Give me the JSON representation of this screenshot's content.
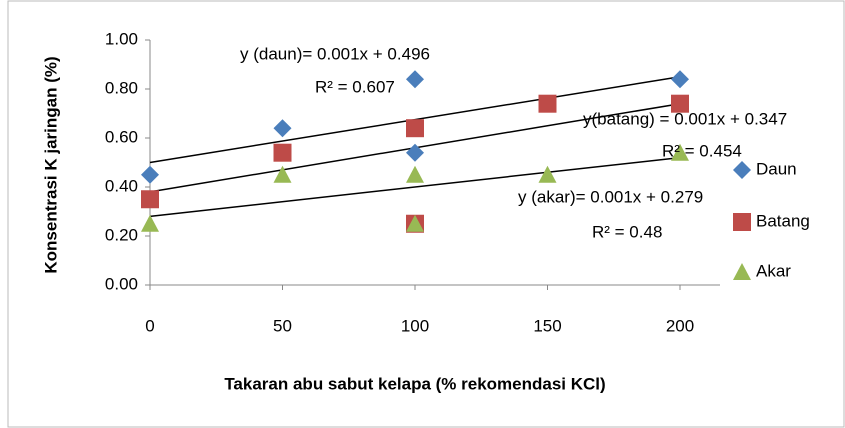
{
  "chart_data": {
    "type": "scatter",
    "x_label": "Takaran abu sabut kelapa (% rekomendasi KCl)",
    "y_label": "Konsentrasi K jaringan (%)",
    "xlim": [
      0,
      200
    ],
    "xticks": [
      0,
      50,
      100,
      150,
      200
    ],
    "ylim": [
      0,
      1
    ],
    "yticks": [
      {
        "value": 0,
        "label": "0.00"
      },
      {
        "value": 0.2,
        "label": "0.20"
      },
      {
        "value": 0.4,
        "label": "0.40"
      },
      {
        "value": 0.6,
        "label": "0.60"
      },
      {
        "value": 0.8,
        "label": "0.80"
      },
      {
        "value": 1,
        "label": "1.00"
      }
    ],
    "grid": false,
    "legend": "right",
    "series": [
      {
        "name": "Daun",
        "color": "#4a7ebb",
        "marker": "diamond",
        "x": [
          0,
          50,
          100,
          100,
          200
        ],
        "values": [
          0.45,
          0.64,
          0.84,
          0.54,
          0.84
        ],
        "trendline": {
          "x": [
            0,
            200
          ],
          "values": [
            0.5,
            0.85
          ]
        }
      },
      {
        "name": "Batang",
        "color": "#be4b48",
        "marker": "square",
        "x": [
          0,
          50,
          100,
          100,
          150,
          200
        ],
        "values": [
          0.35,
          0.54,
          0.64,
          0.25,
          0.74,
          0.74
        ],
        "trendline": {
          "x": [
            0,
            200
          ],
          "values": [
            0.38,
            0.74
          ]
        }
      },
      {
        "name": "Akar",
        "color": "#98b954",
        "marker": "triangle",
        "x": [
          0,
          50,
          100,
          100,
          150,
          200
        ],
        "values": [
          0.25,
          0.45,
          0.45,
          0.25,
          0.45,
          0.54
        ],
        "trendline": {
          "x": [
            0,
            200
          ],
          "values": [
            0.28,
            0.52
          ]
        }
      }
    ],
    "annotations": [
      "y (daun)= 0.001x + 0.496",
      "R² = 0.607",
      "y(batang) = 0.001x + 0.347",
      "R² = 0.454",
      "y (akar)= 0.001x + 0.279",
      "R² = 0.48"
    ]
  }
}
